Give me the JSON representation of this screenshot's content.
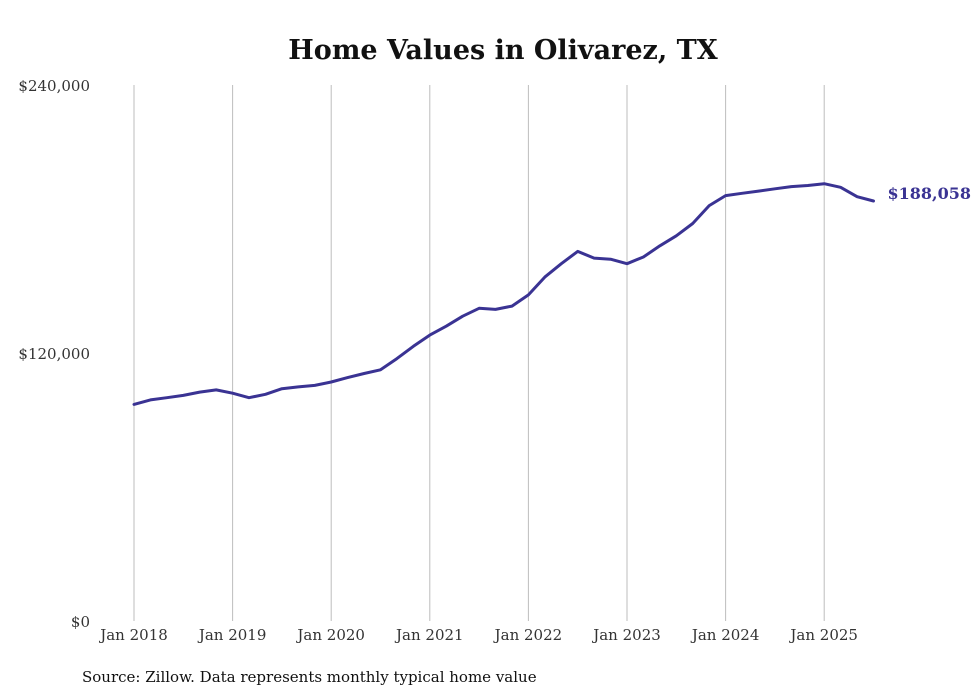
{
  "chart_data": {
    "type": "line",
    "title": "Home Values in Olivarez, TX",
    "xlabel": "",
    "ylabel": "",
    "ylim": [
      0,
      240000
    ],
    "yticks": [
      {
        "value": 0,
        "label": "$0"
      },
      {
        "value": 120000,
        "label": "$120,000"
      },
      {
        "value": 240000,
        "label": "$240,000"
      }
    ],
    "xticks": [
      "Jan 2018",
      "Jan 2019",
      "Jan 2020",
      "Jan 2021",
      "Jan 2022",
      "Jan 2023",
      "Jan 2024",
      "Jan 2025"
    ],
    "grid": "vertical",
    "color": "#3a3393",
    "end_label": "$188,058",
    "series": [
      {
        "x": [
          "2018-01",
          "2018-03",
          "2018-05",
          "2018-07",
          "2018-09",
          "2018-11",
          "2019-01",
          "2019-03",
          "2019-05",
          "2019-07",
          "2019-09",
          "2019-11",
          "2020-01",
          "2020-03",
          "2020-05",
          "2020-07",
          "2020-09",
          "2020-11",
          "2021-01",
          "2021-03",
          "2021-05",
          "2021-07",
          "2021-09",
          "2021-11",
          "2022-01",
          "2022-03",
          "2022-05",
          "2022-07",
          "2022-09",
          "2022-11",
          "2023-01",
          "2023-03",
          "2023-05",
          "2023-07",
          "2023-09",
          "2023-11",
          "2024-01",
          "2024-03",
          "2024-05",
          "2024-07",
          "2024-09",
          "2024-11",
          "2025-01",
          "2025-03",
          "2025-05",
          "2025-07"
        ],
        "values": [
          97000,
          99000,
          100000,
          101000,
          102500,
          103500,
          102000,
          100000,
          101500,
          104000,
          104800,
          105500,
          107000,
          109000,
          110800,
          112500,
          117500,
          123000,
          128000,
          132000,
          136500,
          140000,
          139500,
          141000,
          146000,
          154000,
          160000,
          165500,
          162500,
          162000,
          160000,
          163000,
          168000,
          172500,
          178000,
          186000,
          190500,
          191500,
          192500,
          193500,
          194500,
          195000,
          195800,
          194200,
          190000,
          188058
        ]
      }
    ]
  },
  "source_text": "Source: Zillow. Data represents monthly typical home value"
}
